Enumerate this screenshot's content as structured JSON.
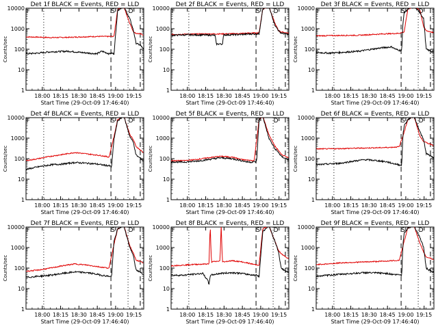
{
  "chart_data": [
    {
      "type": "line",
      "title": "Det 1f BLACK = Events, RED = LLD",
      "xlabel": "Start Time (29-Oct-09 17:46:40)",
      "ylabel": "Counts/sec",
      "yscale": "log",
      "ylim": [
        1,
        10000
      ],
      "xlim": [
        "17:46:40",
        "19:23:00"
      ],
      "x_ticks": [
        "18:00",
        "18:15",
        "18:30",
        "18:45",
        "19:00",
        "19:15"
      ],
      "y_ticks": [
        "1",
        "10",
        "100",
        "1000",
        "10000"
      ],
      "markers": [
        "S",
        "D"
      ],
      "corner_label": "F",
      "events_ctrl": {
        "t": [
          0,
          10,
          20,
          35,
          45,
          58,
          62,
          65,
          68,
          70,
          72,
          75,
          80,
          85,
          88,
          90,
          94,
          96
        ],
        "v": [
          60,
          65,
          75,
          80,
          70,
          60,
          80,
          70,
          60,
          65,
          60,
          8000,
          12000,
          3000,
          800,
          200,
          150,
          100
        ]
      },
      "lld_ctrl": {
        "t": [
          0,
          10,
          20,
          35,
          45,
          58,
          62,
          70,
          72,
          75,
          80,
          85,
          88,
          90,
          94,
          96
        ],
        "v": [
          400,
          390,
          370,
          380,
          400,
          420,
          420,
          420,
          430,
          9000,
          12000,
          1800,
          700,
          600,
          550,
          500
        ]
      },
      "shade_t": null
    },
    {
      "type": "line",
      "title": "Det 2f BLACK = Events, RED = LLD",
      "xlabel": "Start Time (29-Oct-09 17:46:40)",
      "ylabel": "Counts/sec",
      "yscale": "log",
      "ylim": [
        1,
        10000
      ],
      "xlim": [
        "17:46:40",
        "19:23:00"
      ],
      "x_ticks": [
        "18:00",
        "18:15",
        "18:30",
        "18:45",
        "19:00",
        "19:15"
      ],
      "y_ticks": [
        "1",
        "10",
        "100",
        "1000",
        "10000"
      ],
      "markers": [
        "S",
        "D"
      ],
      "corner_label": "F",
      "events_ctrl": {
        "t": [
          0,
          10,
          25,
          36,
          37,
          42,
          43,
          55,
          66,
          70,
          72,
          75,
          80,
          85,
          88,
          90,
          94,
          96
        ],
        "v": [
          480,
          500,
          500,
          480,
          180,
          180,
          500,
          520,
          560,
          560,
          570,
          9000,
          12000,
          1500,
          800,
          620,
          560,
          520
        ]
      },
      "lld_ctrl": {
        "t": [
          0,
          10,
          25,
          36,
          42,
          55,
          66,
          70,
          72,
          75,
          80,
          85,
          88,
          90,
          94,
          96
        ],
        "v": [
          520,
          540,
          560,
          560,
          560,
          580,
          620,
          620,
          640,
          9000,
          12000,
          1800,
          800,
          700,
          640,
          600
        ]
      },
      "shade_t": null
    },
    {
      "type": "line",
      "title": "Det 3f BLACK = Events, RED = LLD",
      "xlabel": "Start Time (29-Oct-09 17:46:40)",
      "ylabel": "Counts/sec",
      "yscale": "log",
      "ylim": [
        1,
        10000
      ],
      "xlim": [
        "17:46:40",
        "19:23:00"
      ],
      "x_ticks": [
        "18:00",
        "18:15",
        "18:30",
        "18:45",
        "19:00",
        "19:15"
      ],
      "y_ticks": [
        "1",
        "10",
        "100",
        "1000",
        "10000"
      ],
      "markers": [
        "S",
        "D"
      ],
      "corner_label": "F",
      "events_ctrl": {
        "t": [
          0,
          10,
          20,
          35,
          45,
          55,
          62,
          65,
          68,
          70,
          71,
          72,
          75,
          80,
          85,
          88,
          90,
          94,
          96
        ],
        "v": [
          70,
          65,
          70,
          80,
          100,
          120,
          130,
          100,
          90,
          85,
          2000,
          6000,
          9000,
          12000,
          6000,
          3000,
          100,
          80,
          70
        ]
      },
      "lld_ctrl": {
        "t": [
          0,
          10,
          20,
          35,
          45,
          55,
          62,
          68,
          72,
          75,
          80,
          85,
          88,
          90,
          94,
          96
        ],
        "v": [
          450,
          460,
          470,
          480,
          520,
          560,
          580,
          600,
          700,
          9000,
          12000,
          8000,
          1200,
          800,
          700,
          650
        ]
      },
      "shade_t": null
    },
    {
      "type": "line",
      "title": "Det 4f BLACK = Events, RED = LLD",
      "xlabel": "Start Time (29-Oct-09 17:46:40)",
      "ylabel": "Counts/sec",
      "yscale": "log",
      "ylim": [
        1,
        10000
      ],
      "xlim": [
        "17:46:40",
        "19:23:00"
      ],
      "x_ticks": [
        "18:00",
        "18:15",
        "18:30",
        "18:45",
        "19:00",
        "19:15"
      ],
      "y_ticks": [
        "1",
        "10",
        "100",
        "1000",
        "10000"
      ],
      "markers": [
        "S",
        "D"
      ],
      "corner_label": "F",
      "events_ctrl": {
        "t": [
          0,
          10,
          20,
          30,
          40,
          50,
          58,
          62,
          65,
          68,
          70,
          72,
          75,
          80,
          85,
          88,
          90,
          94,
          96
        ],
        "v": [
          30,
          40,
          50,
          55,
          65,
          60,
          55,
          50,
          48,
          45,
          40,
          900,
          7000,
          12000,
          1200,
          600,
          150,
          100,
          80
        ]
      },
      "lld_ctrl": {
        "t": [
          0,
          10,
          20,
          30,
          40,
          50,
          58,
          62,
          68,
          72,
          75,
          80,
          85,
          88,
          90,
          94,
          96
        ],
        "v": [
          80,
          100,
          130,
          160,
          200,
          170,
          150,
          140,
          120,
          1200,
          8000,
          12000,
          1500,
          800,
          400,
          250,
          200
        ]
      },
      "shade_t": null
    },
    {
      "type": "line",
      "title": "Det 5f BLACK = Events, RED = LLD",
      "xlabel": "Start Time (29-Oct-09 17:46:40)",
      "ylabel": "Counts/sec",
      "yscale": "log",
      "ylim": [
        1,
        10000
      ],
      "xlim": [
        "17:46:40",
        "19:23:00"
      ],
      "x_ticks": [
        "18:00",
        "18:15",
        "18:30",
        "18:45",
        "19:00",
        "19:15"
      ],
      "y_ticks": [
        "1",
        "10",
        "100",
        "1000",
        "10000"
      ],
      "markers": [
        "S",
        "D"
      ],
      "corner_label": "F",
      "events_ctrl": {
        "t": [
          0,
          10,
          20,
          30,
          40,
          50,
          58,
          62,
          65,
          68,
          70,
          72,
          75,
          80,
          85,
          88,
          90,
          94,
          96
        ],
        "v": [
          70,
          68,
          75,
          90,
          110,
          100,
          80,
          70,
          68,
          70,
          72,
          8000,
          12000,
          1000,
          300,
          200,
          130,
          100,
          90
        ]
      },
      "lld_ctrl": {
        "t": [
          0,
          10,
          20,
          30,
          40,
          50,
          58,
          62,
          68,
          72,
          75,
          80,
          85,
          88,
          90,
          94,
          96
        ],
        "v": [
          80,
          80,
          90,
          110,
          130,
          120,
          90,
          85,
          80,
          8000,
          12000,
          1500,
          400,
          250,
          160,
          130,
          110
        ]
      },
      "shade_t": null
    },
    {
      "type": "line",
      "title": "Det 6f BLACK = Events, RED = LLD",
      "xlabel": "Start Time (29-Oct-09 17:46:40)",
      "ylabel": "Counts/sec",
      "yscale": "log",
      "ylim": [
        1,
        10000
      ],
      "xlim": [
        "17:46:40",
        "19:23:00"
      ],
      "x_ticks": [
        "18:00",
        "18:15",
        "18:30",
        "18:45",
        "19:00",
        "19:15"
      ],
      "y_ticks": [
        "1",
        "10",
        "100",
        "1000",
        "10000"
      ],
      "markers": [
        "S",
        "D"
      ],
      "corner_label": "F",
      "events_ctrl": {
        "t": [
          0,
          10,
          20,
          30,
          40,
          50,
          58,
          62,
          65,
          68,
          70,
          71,
          72,
          75,
          80,
          85,
          88,
          90,
          94,
          96
        ],
        "v": [
          50,
          55,
          60,
          75,
          90,
          80,
          70,
          60,
          55,
          50,
          48,
          1500,
          4000,
          8000,
          12000,
          2000,
          800,
          180,
          130,
          110
        ]
      },
      "lld_ctrl": {
        "t": [
          0,
          10,
          20,
          30,
          40,
          50,
          58,
          62,
          68,
          72,
          75,
          80,
          85,
          88,
          90,
          94,
          96
        ],
        "v": [
          300,
          300,
          310,
          320,
          330,
          340,
          350,
          360,
          380,
          2000,
          8000,
          12000,
          1200,
          700,
          600,
          500,
          450
        ]
      },
      "shade_t": null
    },
    {
      "type": "line",
      "title": "Det 7f BLACK = Events, RED = LLD",
      "xlabel": "Start Time (29-Oct-09 17:46:40)",
      "ylabel": "Counts/sec",
      "yscale": "log",
      "ylim": [
        1,
        10000
      ],
      "xlim": [
        "17:46:40",
        "19:23:00"
      ],
      "x_ticks": [
        "18:00",
        "18:15",
        "18:30",
        "18:45",
        "19:00",
        "19:15"
      ],
      "y_ticks": [
        "1",
        "10",
        "100",
        "1000",
        "10000"
      ],
      "markers": [
        "S",
        "D"
      ],
      "corner_label": "F",
      "events_ctrl": {
        "t": [
          0,
          10,
          20,
          30,
          40,
          50,
          58,
          62,
          65,
          68,
          70,
          72,
          75,
          80,
          85,
          88,
          90,
          94,
          96
        ],
        "v": [
          35,
          40,
          45,
          55,
          65,
          60,
          50,
          45,
          42,
          40,
          38,
          2000,
          8000,
          12000,
          1000,
          400,
          80,
          60,
          50
        ]
      },
      "lld_ctrl": {
        "t": [
          0,
          10,
          20,
          30,
          40,
          50,
          58,
          62,
          68,
          72,
          75,
          80,
          85,
          88,
          90,
          94,
          96
        ],
        "v": [
          70,
          80,
          100,
          130,
          160,
          140,
          120,
          110,
          100,
          1500,
          8000,
          12000,
          1200,
          500,
          250,
          200,
          180
        ]
      },
      "shade_t": null
    },
    {
      "type": "line",
      "title": "Det 8f BLACK = Events, RED = LLD",
      "xlabel": "Start Time (29-Oct-09 17:46:40)",
      "ylabel": "Counts/sec",
      "yscale": "log",
      "ylim": [
        1,
        10000
      ],
      "xlim": [
        "17:46:40",
        "19:23:00"
      ],
      "x_ticks": [
        "18:00",
        "18:15",
        "18:30",
        "18:45",
        "19:00",
        "19:15"
      ],
      "y_ticks": [
        "1",
        "10",
        "100",
        "1000",
        "10000"
      ],
      "markers": [
        "S",
        "D"
      ],
      "corner_label": "F",
      "events_ctrl": {
        "t": [
          0,
          10,
          18,
          26,
          30,
          31,
          32,
          40,
          50,
          58,
          62,
          65,
          68,
          70,
          72,
          75,
          80,
          85,
          88,
          90,
          94,
          96
        ],
        "v": [
          45,
          45,
          50,
          55,
          25,
          15,
          45,
          55,
          60,
          55,
          50,
          48,
          45,
          45,
          40,
          6000,
          12000,
          2000,
          600,
          100,
          70,
          60
        ]
      },
      "lld_ctrl": {
        "t": [
          0,
          10,
          18,
          31,
          32,
          33,
          40,
          41,
          42,
          50,
          58,
          62,
          68,
          72,
          75,
          80,
          85,
          88,
          90,
          94,
          96
        ],
        "v": [
          130,
          140,
          150,
          160,
          12000,
          200,
          220,
          12000,
          200,
          230,
          200,
          180,
          150,
          140,
          8000,
          12000,
          2000,
          700,
          500,
          350,
          300
        ]
      },
      "shade_t": null
    },
    {
      "type": "line",
      "title": "Det 9f BLACK = Events, RED = LLD",
      "xlabel": "Start Time (29-Oct-09 17:46:40)",
      "ylabel": "Counts/sec",
      "yscale": "log",
      "ylim": [
        1,
        10000
      ],
      "xlim": [
        "17:46:40",
        "19:23:00"
      ],
      "x_ticks": [
        "18:00",
        "18:15",
        "18:30",
        "18:45",
        "19:00",
        "19:15"
      ],
      "y_ticks": [
        "1",
        "10",
        "100",
        "1000",
        "10000"
      ],
      "markers": [
        "S",
        "D"
      ],
      "corner_label": "F",
      "events_ctrl": {
        "t": [
          0,
          10,
          20,
          30,
          40,
          50,
          58,
          62,
          65,
          68,
          70,
          71,
          72,
          75,
          80,
          85,
          88,
          90,
          94,
          96
        ],
        "v": [
          40,
          45,
          50,
          55,
          60,
          58,
          55,
          50,
          48,
          48,
          45,
          1500,
          5000,
          9000,
          12000,
          3000,
          1000,
          100,
          70,
          60
        ]
      },
      "lld_ctrl": {
        "t": [
          0,
          10,
          20,
          30,
          40,
          50,
          58,
          62,
          68,
          72,
          75,
          80,
          85,
          88,
          90,
          94,
          96
        ],
        "v": [
          150,
          160,
          180,
          190,
          200,
          210,
          220,
          230,
          240,
          2000,
          9000,
          12000,
          1500,
          600,
          350,
          300,
          250
        ]
      },
      "shade_t": null
    }
  ],
  "event_lines": {
    "dotted_t": [
      14.5,
      83.5
    ],
    "dashed_t": [
      69.5,
      93.5
    ],
    "labels": [
      "S",
      "D"
    ]
  },
  "colors": {
    "events": "#000000",
    "lld": "#e00000",
    "axes": "#000000"
  }
}
